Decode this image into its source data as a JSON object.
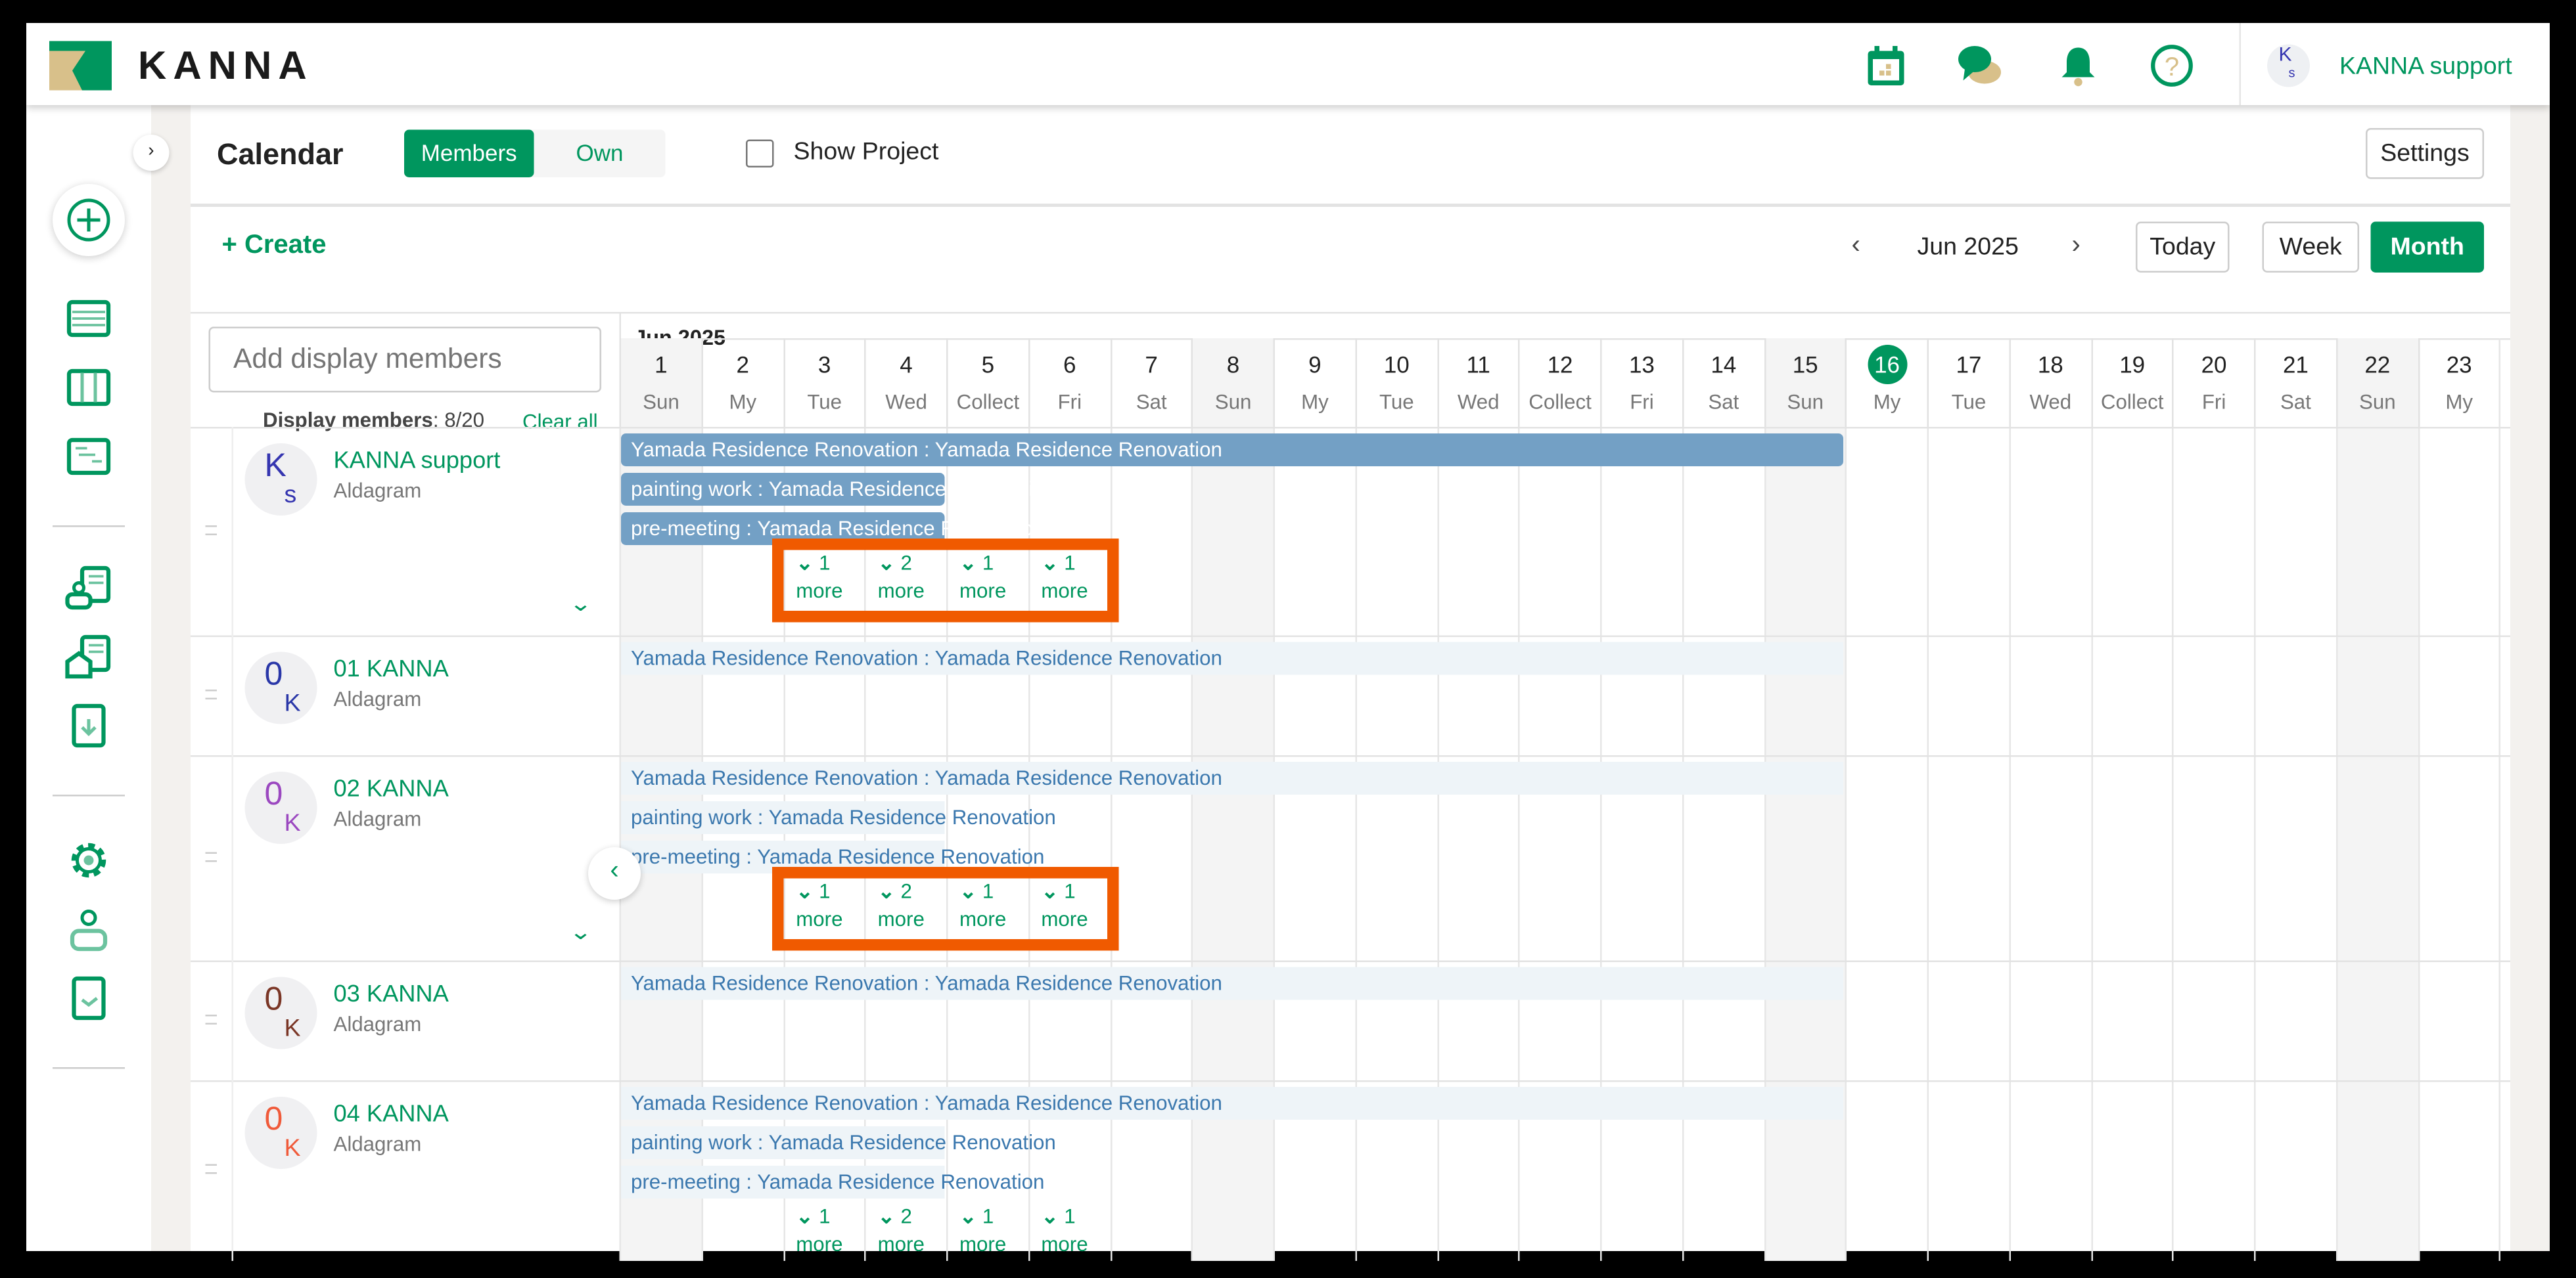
{
  "header": {
    "logo": "KANNA",
    "user_initials_top": "K",
    "user_initials_bottom": "s",
    "user_name": "KANNA support",
    "icons": [
      "calendar-icon",
      "chat-icon",
      "bell-icon",
      "help-icon"
    ]
  },
  "sidebar": {
    "icons": [
      "create-icon",
      "list-icon",
      "board-icon",
      "gantt-icon",
      "client-icon",
      "property-icon",
      "report-download-icon",
      "settings-icon",
      "user-icon",
      "approval-icon"
    ]
  },
  "toolbar": {
    "title": "Calendar",
    "toggle": [
      "Members",
      "Own"
    ],
    "toggle_active": "Members",
    "show_project": "Show Project",
    "show_project_checked": false,
    "settings": "Settings"
  },
  "nav": {
    "create": "+ Create",
    "month": "Jun 2025",
    "today": "Today",
    "week": "Week",
    "month_view": "Month",
    "active_view": "Month"
  },
  "members_panel": {
    "placeholder": "Add display members",
    "count_label": "Display members",
    "count": ": 8/20",
    "clear": "Clear all"
  },
  "calendar": {
    "month_label": "Jun 2025",
    "today": 16,
    "days": [
      {
        "d": "1",
        "w": "Sun"
      },
      {
        "d": "2",
        "w": "My"
      },
      {
        "d": "3",
        "w": "Tue"
      },
      {
        "d": "4",
        "w": "Wed"
      },
      {
        "d": "5",
        "w": "Collect"
      },
      {
        "d": "6",
        "w": "Fri"
      },
      {
        "d": "7",
        "w": "Sat"
      },
      {
        "d": "8",
        "w": "Sun"
      },
      {
        "d": "9",
        "w": "My"
      },
      {
        "d": "10",
        "w": "Tue"
      },
      {
        "d": "11",
        "w": "Wed"
      },
      {
        "d": "12",
        "w": "Collect"
      },
      {
        "d": "13",
        "w": "Fri"
      },
      {
        "d": "14",
        "w": "Sat"
      },
      {
        "d": "15",
        "w": "Sun"
      },
      {
        "d": "16",
        "w": "My"
      },
      {
        "d": "17",
        "w": "Tue"
      },
      {
        "d": "18",
        "w": "Wed"
      },
      {
        "d": "19",
        "w": "Collect"
      },
      {
        "d": "20",
        "w": "Fri"
      },
      {
        "d": "21",
        "w": "Sat"
      },
      {
        "d": "22",
        "w": "Sun"
      },
      {
        "d": "23",
        "w": "My"
      }
    ],
    "members": [
      {
        "name": "KANNA support",
        "company": "Aldagram",
        "init_top": "K",
        "init_bottom": "s",
        "color": "#3535b0",
        "expanded": true,
        "events": [
          {
            "label": "Yamada Residence Renovation : Yamada Residence Renovation",
            "start": 1,
            "end": 15,
            "style": "solid"
          },
          {
            "label": "painting work : Yamada Residence Renovation",
            "start": 1,
            "end": 4,
            "style": "solid"
          },
          {
            "label": "pre-meeting : Yamada Residence Renovation",
            "start": 1,
            "end": 4,
            "style": "solid"
          }
        ],
        "more": [
          {
            "day": 3,
            "count": "1",
            "label": "more"
          },
          {
            "day": 4,
            "count": "2",
            "label": "more"
          },
          {
            "day": 5,
            "count": "1",
            "label": "more"
          },
          {
            "day": 6,
            "count": "1",
            "label": "more"
          }
        ],
        "highlighted": true
      },
      {
        "name": "01 KANNA",
        "company": "Aldagram",
        "init_top": "0",
        "init_bottom": "K",
        "color": "#2a37a8",
        "expanded": false,
        "events": [
          {
            "label": "Yamada Residence Renovation : Yamada Residence Renovation",
            "start": 1,
            "end": 15,
            "style": "light"
          }
        ],
        "more": []
      },
      {
        "name": "02 KANNA",
        "company": "Aldagram",
        "init_top": "0",
        "init_bottom": "K",
        "color": "#9b48c0",
        "expanded": true,
        "events": [
          {
            "label": "Yamada Residence Renovation : Yamada Residence Renovation",
            "start": 1,
            "end": 15,
            "style": "light"
          },
          {
            "label": "painting work : Yamada Residence Renovation",
            "start": 1,
            "end": 4,
            "style": "light"
          },
          {
            "label": "pre-meeting : Yamada Residence Renovation",
            "start": 1,
            "end": 4,
            "style": "light"
          }
        ],
        "more": [
          {
            "day": 3,
            "count": "1",
            "label": "more"
          },
          {
            "day": 4,
            "count": "2",
            "label": "more"
          },
          {
            "day": 5,
            "count": "1",
            "label": "more"
          },
          {
            "day": 6,
            "count": "1",
            "label": "more"
          }
        ],
        "highlighted": true
      },
      {
        "name": "03 KANNA",
        "company": "Aldagram",
        "init_top": "0",
        "init_bottom": "K",
        "color": "#7a3626",
        "expanded": false,
        "events": [
          {
            "label": "Yamada Residence Renovation : Yamada Residence Renovation",
            "start": 1,
            "end": 15,
            "style": "light"
          }
        ],
        "more": []
      },
      {
        "name": "04 KANNA",
        "company": "Aldagram",
        "init_top": "0",
        "init_bottom": "K",
        "color": "#f05a3a",
        "expanded": true,
        "events": [
          {
            "label": "Yamada Residence Renovation : Yamada Residence Renovation",
            "start": 1,
            "end": 15,
            "style": "light"
          },
          {
            "label": "painting work : Yamada Residence Renovation",
            "start": 1,
            "end": 4,
            "style": "light"
          },
          {
            "label": "pre-meeting : Yamada Residence Renovation",
            "start": 1,
            "end": 4,
            "style": "light"
          }
        ],
        "more": [
          {
            "day": 3,
            "count": "1",
            "label": "more"
          },
          {
            "day": 4,
            "count": "2",
            "label": "more"
          },
          {
            "day": 5,
            "count": "1",
            "label": "more"
          },
          {
            "day": 6,
            "count": "1",
            "label": "more"
          }
        ]
      }
    ]
  },
  "colors": {
    "accent": "#00965e",
    "event_solid": "#73a0c5",
    "event_light": "#eef4f8",
    "highlight": "#f05a00",
    "logo_gold": "#d8c08a"
  }
}
